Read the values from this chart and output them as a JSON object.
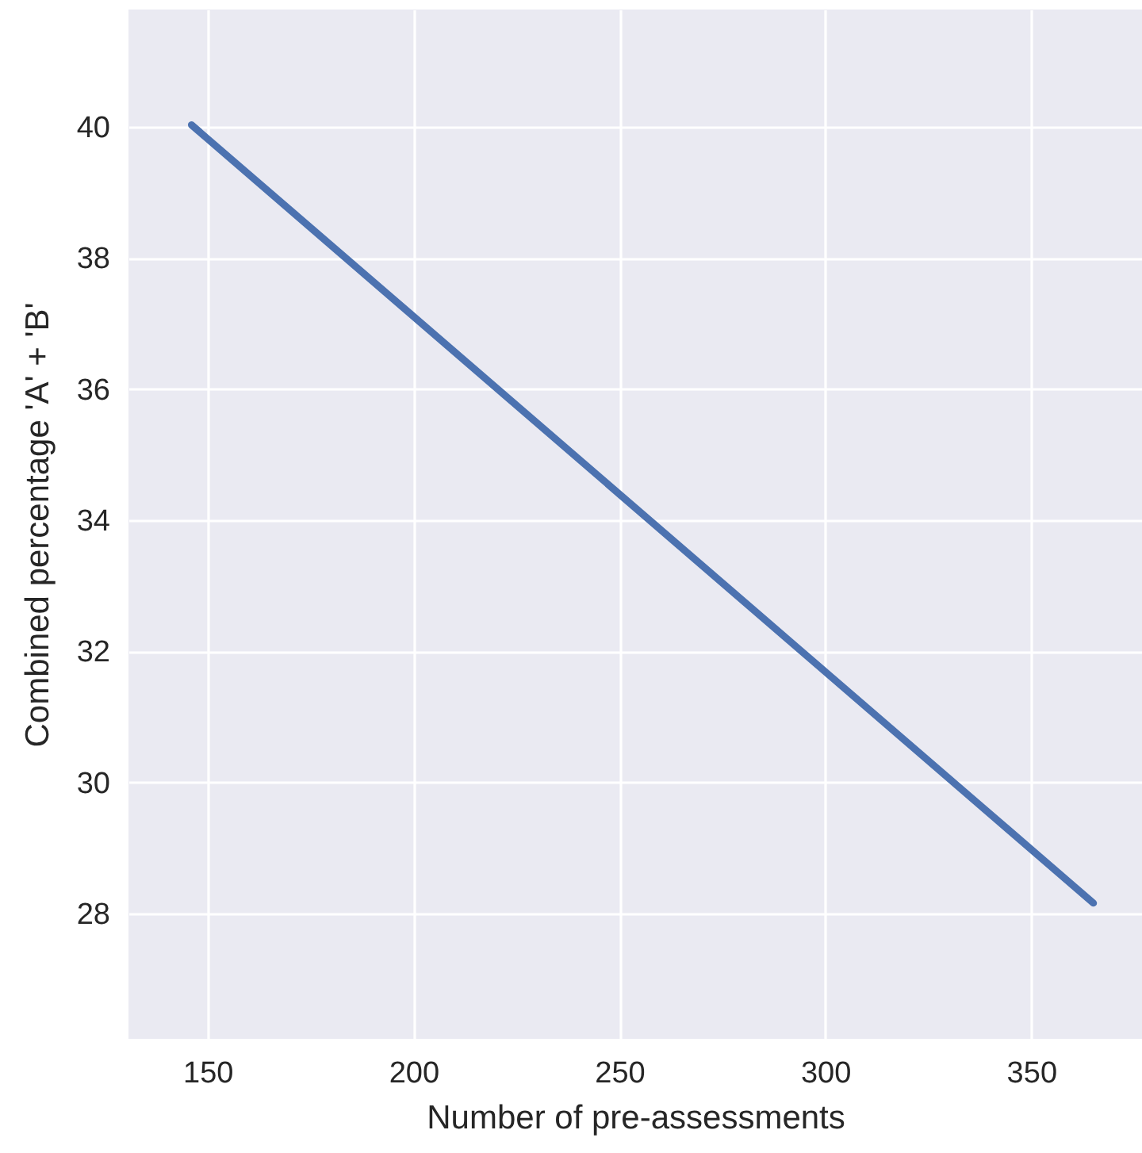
{
  "chart_data": {
    "type": "line",
    "xlabel": "Number of pre-assessments",
    "ylabel": "Combined percentage 'A' + 'B'",
    "x": [
      146.1,
      365.1
    ],
    "series": [
      {
        "color": "#4c72b0",
        "values": [
          40.03,
          28.16
        ]
      }
    ],
    "xlim": [
      130.8,
      376.9
    ],
    "xticks": [
      150,
      200,
      250,
      300,
      350
    ],
    "ylim": [
      26.09,
      41.79
    ],
    "yticks": [
      28,
      30,
      32,
      34,
      36,
      38,
      40
    ],
    "grid": true,
    "marker": "none",
    "line_style": "solid"
  }
}
